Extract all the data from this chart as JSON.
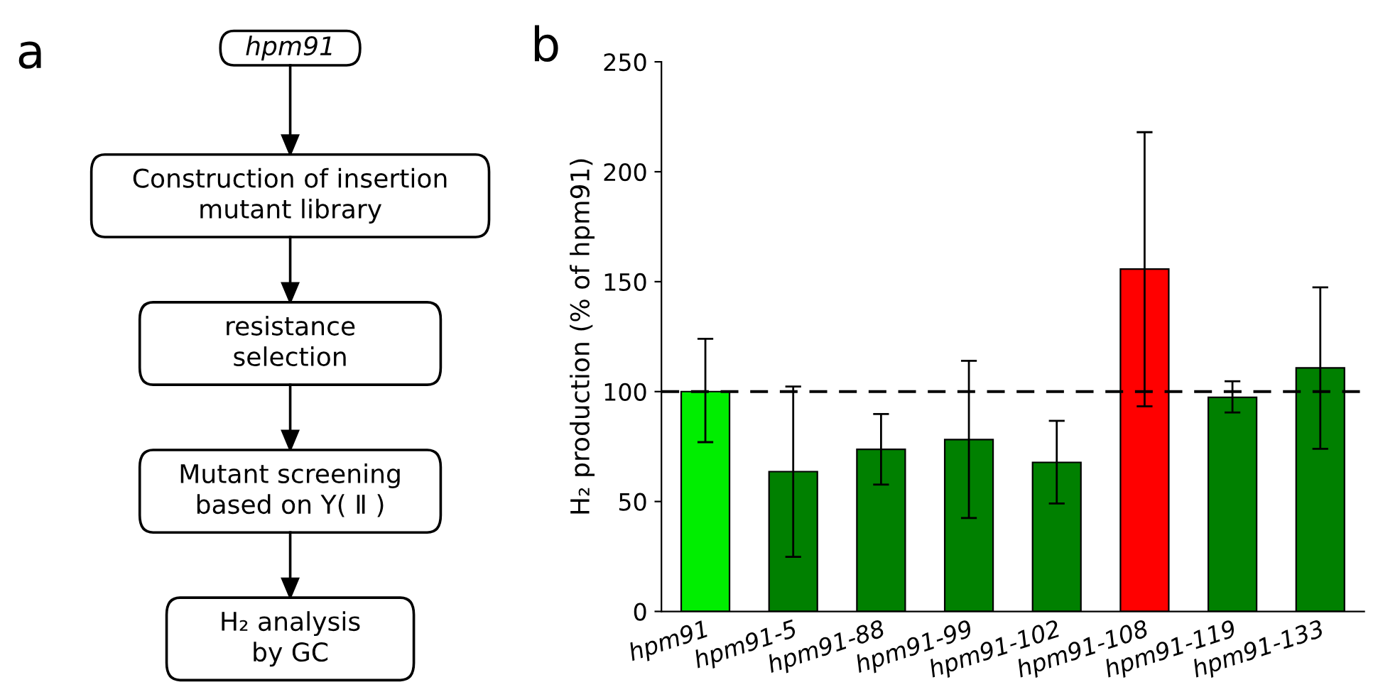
{
  "chart_data": [
    {
      "type": "other",
      "annotations": [
        "a",
        "hpm91",
        "Construction of insertion\nmutant library",
        "resistance\nselection",
        "Mutant screening\nbased on Y( Ⅱ )",
        "H₂ analysis\nby GC"
      ]
    },
    {
      "type": "bar",
      "ylabel": "H₂ production (% of hpm91)",
      "annotations": [
        "b"
      ],
      "categories": [
        "hpm91",
        "hpm91-5",
        "hpm91-88",
        "hpm91-99",
        "hpm91-102",
        "hpm91-108",
        "hpm91-119",
        "hpm91-133"
      ],
      "values": [
        100,
        63.6,
        73.7,
        78.2,
        67.8,
        155.7,
        97.4,
        110.8
      ],
      "errors": [
        [
          77,
          124
        ],
        [
          24.8,
          102.3
        ],
        [
          57.7,
          89.8
        ],
        [
          42.5,
          114
        ],
        [
          49.1,
          86.7
        ],
        [
          93.3,
          218
        ],
        [
          90.5,
          104.7
        ],
        [
          74,
          147.4
        ]
      ],
      "colors": [
        "#00ee00",
        "#008000",
        "#008000",
        "#008000",
        "#008000",
        "#ff0000",
        "#008000",
        "#008000"
      ],
      "ylim": [
        0,
        250
      ],
      "yticks": [
        0,
        50,
        100,
        150,
        200,
        250
      ],
      "ref_lines": [
        {
          "axis": "y",
          "value": 100,
          "line_style": "dashed",
          "color": "#000000"
        }
      ],
      "grid": false
    }
  ]
}
